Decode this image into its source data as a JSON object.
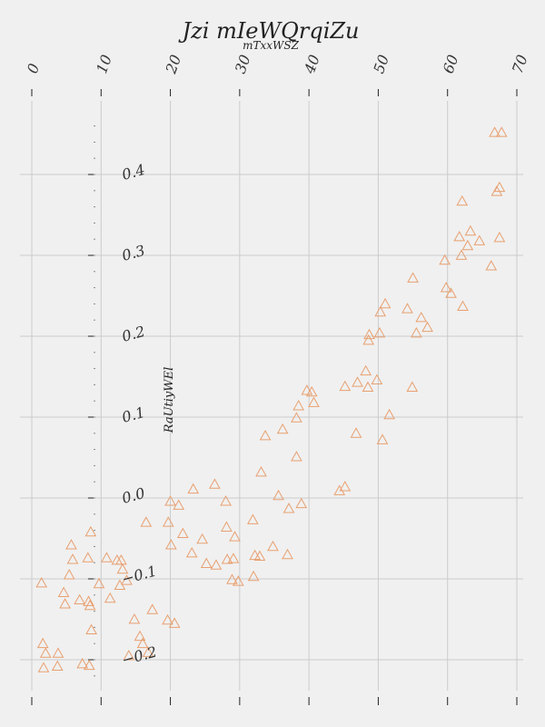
{
  "chart_data": {
    "type": "scatter",
    "title": "Jzi mIeWQrqiZu",
    "subtitle": "mTxxWSZ",
    "xlabel": "",
    "ylabel": "RaUtiyWEl",
    "xlim": [
      -0.2,
      70.3
    ],
    "ylim": [
      -0.242,
      0.484
    ],
    "grid": true,
    "marker": "triangle-open",
    "color": "#e8a070",
    "x_ticks": [
      0,
      10,
      20,
      30,
      40,
      50,
      60,
      70
    ],
    "y_ticks": [
      -0.2,
      -0.1,
      0.0,
      0.1,
      0.2,
      0.3,
      0.4
    ],
    "x_tick_labels": [
      "0",
      "10",
      "20",
      "30",
      "40",
      "50",
      "60",
      "70"
    ],
    "y_tick_labels": [
      "−0.2",
      "−0.1",
      "0.0",
      "0.1",
      "0.2",
      "0.3",
      "0.4"
    ],
    "points": [
      [
        1.4,
        -0.105
      ],
      [
        1.6,
        -0.18
      ],
      [
        1.7,
        -0.21
      ],
      [
        2.0,
        -0.192
      ],
      [
        3.7,
        -0.208
      ],
      [
        3.8,
        -0.192
      ],
      [
        4.6,
        -0.117
      ],
      [
        4.8,
        -0.131
      ],
      [
        5.4,
        -0.095
      ],
      [
        5.7,
        -0.058
      ],
      [
        5.9,
        -0.076
      ],
      [
        6.9,
        -0.126
      ],
      [
        7.3,
        -0.205
      ],
      [
        8.1,
        -0.074
      ],
      [
        8.2,
        -0.128
      ],
      [
        8.3,
        -0.207
      ],
      [
        8.4,
        -0.133
      ],
      [
        8.5,
        -0.042
      ],
      [
        8.6,
        -0.163
      ],
      [
        9.7,
        -0.106
      ],
      [
        10.8,
        -0.074
      ],
      [
        11.3,
        -0.124
      ],
      [
        12.3,
        -0.077
      ],
      [
        12.7,
        -0.108
      ],
      [
        12.9,
        -0.077
      ],
      [
        13.1,
        -0.088
      ],
      [
        13.7,
        -0.102
      ],
      [
        14.0,
        -0.195
      ],
      [
        14.8,
        -0.15
      ],
      [
        15.6,
        -0.171
      ],
      [
        16.0,
        -0.18
      ],
      [
        16.5,
        -0.03
      ],
      [
        16.8,
        -0.191
      ],
      [
        17.4,
        -0.138
      ],
      [
        19.6,
        -0.151
      ],
      [
        19.7,
        -0.03
      ],
      [
        20.0,
        -0.004
      ],
      [
        20.1,
        -0.058
      ],
      [
        20.6,
        -0.155
      ],
      [
        21.2,
        -0.009
      ],
      [
        21.8,
        -0.044
      ],
      [
        23.1,
        -0.068
      ],
      [
        23.3,
        0.011
      ],
      [
        24.6,
        -0.051
      ],
      [
        25.2,
        -0.081
      ],
      [
        26.4,
        0.017
      ],
      [
        26.6,
        -0.083
      ],
      [
        28.0,
        -0.004
      ],
      [
        28.1,
        -0.036
      ],
      [
        28.2,
        -0.076
      ],
      [
        28.9,
        -0.101
      ],
      [
        29.1,
        -0.075
      ],
      [
        29.3,
        -0.048
      ],
      [
        29.8,
        -0.103
      ],
      [
        31.9,
        -0.027
      ],
      [
        32.0,
        -0.097
      ],
      [
        32.2,
        -0.071
      ],
      [
        32.9,
        -0.072
      ],
      [
        33.1,
        0.032
      ],
      [
        33.7,
        0.077
      ],
      [
        34.8,
        -0.06
      ],
      [
        35.6,
        0.003
      ],
      [
        36.2,
        0.085
      ],
      [
        36.9,
        -0.07
      ],
      [
        37.1,
        -0.013
      ],
      [
        38.2,
        0.051
      ],
      [
        38.2,
        0.099
      ],
      [
        38.5,
        0.114
      ],
      [
        38.9,
        -0.007
      ],
      [
        39.7,
        0.133
      ],
      [
        40.4,
        0.131
      ],
      [
        40.7,
        0.118
      ],
      [
        44.4,
        0.009
      ],
      [
        45.2,
        0.014
      ],
      [
        45.2,
        0.138
      ],
      [
        46.8,
        0.08
      ],
      [
        47.0,
        0.143
      ],
      [
        48.2,
        0.157
      ],
      [
        48.5,
        0.137
      ],
      [
        48.6,
        0.195
      ],
      [
        48.7,
        0.202
      ],
      [
        49.8,
        0.146
      ],
      [
        50.2,
        0.204
      ],
      [
        50.3,
        0.23
      ],
      [
        50.6,
        0.072
      ],
      [
        51.0,
        0.24
      ],
      [
        51.6,
        0.103
      ],
      [
        54.2,
        0.234
      ],
      [
        54.9,
        0.137
      ],
      [
        55.0,
        0.272
      ],
      [
        55.5,
        0.204
      ],
      [
        56.2,
        0.223
      ],
      [
        57.1,
        0.211
      ],
      [
        59.6,
        0.294
      ],
      [
        59.8,
        0.26
      ],
      [
        60.5,
        0.253
      ],
      [
        61.7,
        0.323
      ],
      [
        62.0,
        0.3
      ],
      [
        62.1,
        0.367
      ],
      [
        62.2,
        0.237
      ],
      [
        62.9,
        0.312
      ],
      [
        63.3,
        0.33
      ],
      [
        64.6,
        0.318
      ],
      [
        66.3,
        0.287
      ],
      [
        66.8,
        0.452
      ],
      [
        67.1,
        0.379
      ],
      [
        67.5,
        0.322
      ],
      [
        67.5,
        0.384
      ],
      [
        67.8,
        0.452
      ]
    ]
  }
}
